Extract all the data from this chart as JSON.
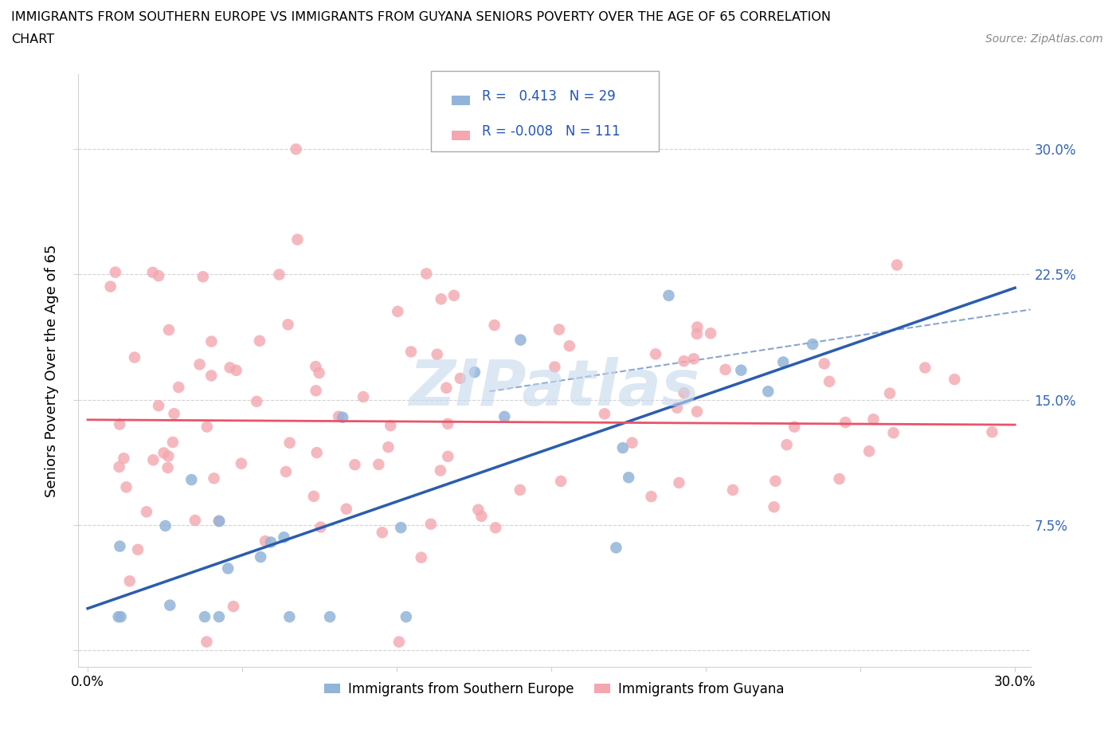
{
  "title_line1": "IMMIGRANTS FROM SOUTHERN EUROPE VS IMMIGRANTS FROM GUYANA SENIORS POVERTY OVER THE AGE OF 65 CORRELATION",
  "title_line2": "CHART",
  "source": "Source: ZipAtlas.com",
  "ylabel": "Seniors Poverty Over the Age of 65",
  "xlim": [
    -0.003,
    0.305
  ],
  "ylim": [
    -0.01,
    0.345
  ],
  "yticks": [
    0.0,
    0.075,
    0.15,
    0.225,
    0.3
  ],
  "ytick_labels": [
    "",
    "7.5%",
    "15.0%",
    "22.5%",
    "30.0%"
  ],
  "xtick_labels": [
    "0.0%",
    "30.0%"
  ],
  "xtick_vals": [
    0.0,
    0.3
  ],
  "R_blue": 0.413,
  "N_blue": 29,
  "R_pink": -0.008,
  "N_pink": 111,
  "blue_color": "#92B4D9",
  "pink_color": "#F4A7B0",
  "blue_line_color": "#2B5DAD",
  "pink_line_color": "#E8546A",
  "watermark": "ZIPatlas",
  "watermark_color": "#C5D8EE",
  "legend_label_blue": "Immigrants from Southern Europe",
  "legend_label_pink": "Immigrants from Guyana"
}
